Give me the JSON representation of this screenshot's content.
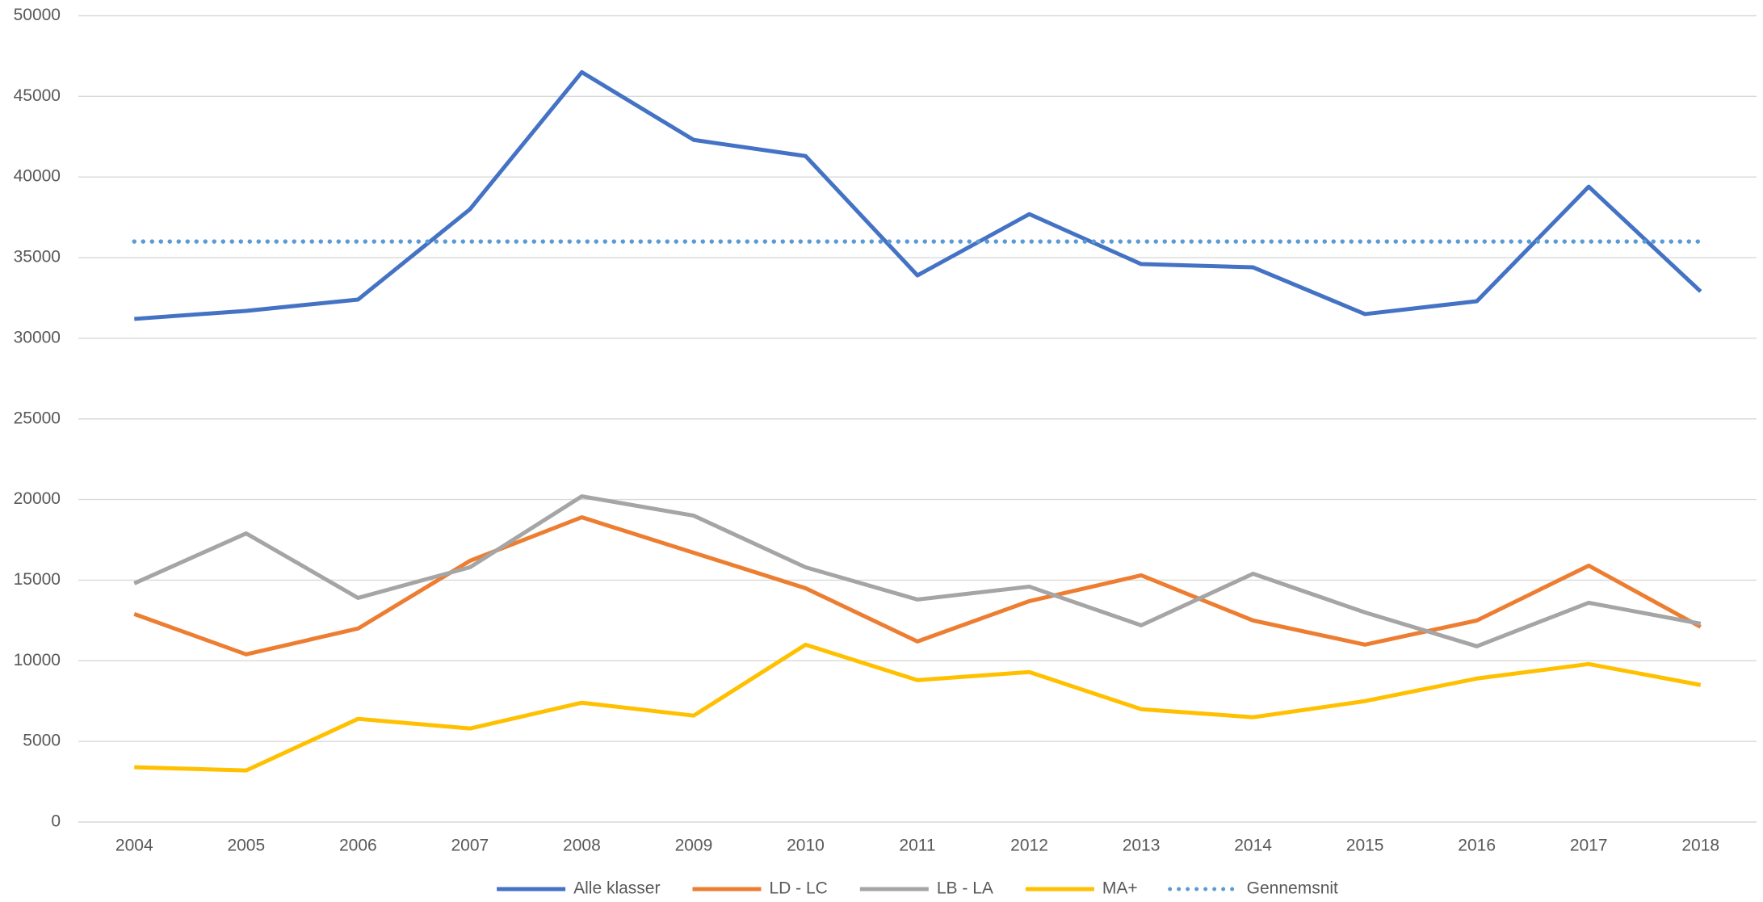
{
  "chart_data": {
    "type": "line",
    "categories": [
      "2004",
      "2005",
      "2006",
      "2007",
      "2008",
      "2009",
      "2010",
      "2011",
      "2012",
      "2013",
      "2014",
      "2015",
      "2016",
      "2017",
      "2018"
    ],
    "series": [
      {
        "name": "Alle klasser",
        "color": "#4472c4",
        "values": [
          31200,
          31700,
          32400,
          38000,
          46500,
          42300,
          41300,
          33900,
          37700,
          34600,
          34400,
          31500,
          32300,
          39400,
          32900
        ]
      },
      {
        "name": "LD - LC",
        "color": "#ed7d31",
        "values": [
          12900,
          10400,
          12000,
          16200,
          18900,
          16700,
          14500,
          11200,
          13700,
          15300,
          12500,
          11000,
          12500,
          15900,
          12100
        ]
      },
      {
        "name": "LB - LA",
        "color": "#a5a5a5",
        "values": [
          14800,
          17900,
          13900,
          15800,
          20200,
          19000,
          15800,
          13800,
          14600,
          12200,
          15400,
          13000,
          10900,
          13600,
          12300
        ]
      },
      {
        "name": "MA+",
        "color": "#ffc000",
        "values": [
          3400,
          3200,
          6400,
          5800,
          7400,
          6600,
          11000,
          8800,
          9300,
          7000,
          6500,
          7500,
          8900,
          9800,
          8500
        ]
      },
      {
        "name": "Gennemsnit",
        "color": "#5b9bd5",
        "style": "dotted",
        "values": [
          36000,
          36000,
          36000,
          36000,
          36000,
          36000,
          36000,
          36000,
          36000,
          36000,
          36000,
          36000,
          36000,
          36000,
          36000
        ]
      }
    ],
    "ylim": [
      0,
      50000
    ],
    "yticks": [
      0,
      5000,
      10000,
      15000,
      20000,
      25000,
      30000,
      35000,
      40000,
      45000,
      50000
    ],
    "grid": true,
    "legend": "bottom"
  }
}
